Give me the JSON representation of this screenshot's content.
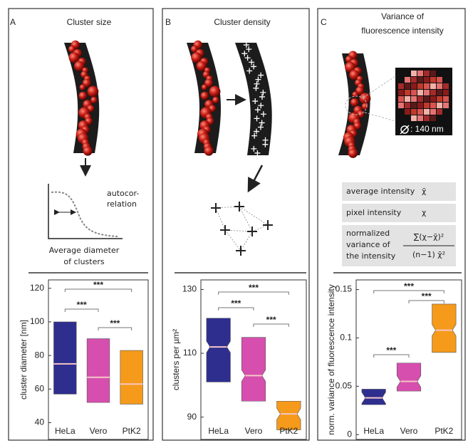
{
  "panels": [
    {
      "letter": "A",
      "title": [
        "Cluster size"
      ],
      "texts": [
        "autocor-",
        "relation",
        "Average diameter",
        "of clusters"
      ]
    },
    {
      "letter": "B",
      "title": [
        "Cluster density"
      ],
      "texts": []
    },
    {
      "letter": "C",
      "title": [
        "Variance of",
        "fluorescence intensity"
      ],
      "texts": [
        ": 140 nm"
      ],
      "table": [
        [
          "average intensity",
          "χ̄"
        ],
        [
          "pixel intensity",
          "χ"
        ],
        [
          "normalized",
          "variance of",
          "the intensity",
          "∑(χ−χ̄)²",
          "(n−1) χ̄²"
        ]
      ]
    }
  ],
  "chart_data": [
    {
      "type": "box",
      "ylabel": "cluster diameter [nm]",
      "categories": [
        "HeLa",
        "Vero",
        "PtK2"
      ],
      "colors": [
        "#2e2e8f",
        "#d64fae",
        "#f59a1b"
      ],
      "notched": false,
      "boxes": [
        {
          "low": 57,
          "median": 75,
          "high": 100
        },
        {
          "low": 52,
          "median": 67,
          "high": 90
        },
        {
          "low": 51,
          "median": 63,
          "high": 83
        }
      ],
      "ylim": [
        30,
        125
      ],
      "yticks": [
        40,
        60,
        80,
        100,
        120
      ],
      "annotations": [
        "***",
        "***",
        "***"
      ]
    },
    {
      "type": "box",
      "ylabel": "clusters per µm²",
      "categories": [
        "HeLa",
        "Vero",
        "PtK2"
      ],
      "colors": [
        "#2e2e8f",
        "#d64fae",
        "#f59a1b"
      ],
      "notched": true,
      "boxes": [
        {
          "low": 101,
          "median": 112,
          "high": 121
        },
        {
          "low": 95,
          "median": 103,
          "high": 115
        },
        {
          "low": 86,
          "median": 91,
          "high": 95
        }
      ],
      "ylim": [
        83,
        133
      ],
      "yticks": [
        90,
        110,
        130
      ],
      "annotations": [
        "***",
        "***",
        "***"
      ]
    },
    {
      "type": "box",
      "ylabel": "norm. variance of fluorescence intensity",
      "categories": [
        "HeLa",
        "Vero",
        "PtK2"
      ],
      "colors": [
        "#2e2e8f",
        "#d64fae",
        "#f59a1b"
      ],
      "notched": true,
      "boxes": [
        {
          "low": 0.031,
          "median": 0.038,
          "high": 0.047
        },
        {
          "low": 0.045,
          "median": 0.055,
          "high": 0.074
        },
        {
          "low": 0.085,
          "median": 0.108,
          "high": 0.135
        }
      ],
      "ylim": [
        -0.005,
        0.16
      ],
      "yticks": [
        0,
        0.05,
        0.1,
        0.15
      ],
      "annotations": [
        "***",
        "***",
        "***"
      ]
    }
  ]
}
